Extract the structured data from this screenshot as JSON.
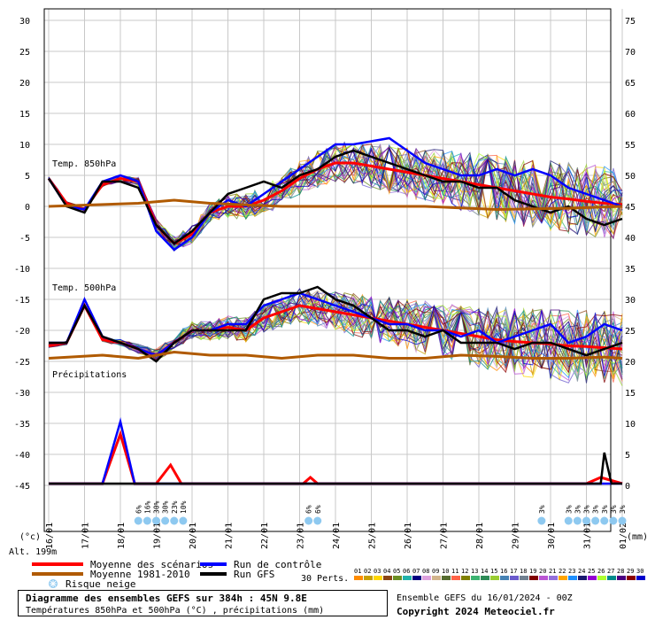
{
  "chart_data": {
    "type": "line",
    "left_axis_ticks": [
      "30",
      "25",
      "20",
      "15",
      "10",
      "5",
      "0",
      "-5",
      "-10",
      "-15",
      "-20",
      "-25",
      "-30",
      "-35",
      "-40",
      "-45"
    ],
    "right_axis_ticks": [
      "75",
      "70",
      "65",
      "60",
      "55",
      "50",
      "45",
      "40",
      "35",
      "30",
      "25",
      "20",
      "15",
      "10",
      "5",
      "0"
    ],
    "left_unit": "(°c)",
    "right_unit": "(mm)",
    "x_ticks": [
      "17/01",
      "18/01",
      "19/01",
      "20/01",
      "21/01",
      "22/01",
      "23/01",
      "24/01",
      "25/01",
      "26/01",
      "27/01",
      "28/01",
      "29/01",
      "30/01",
      "31/01",
      "01/02"
    ],
    "x_first_partial": "16/01",
    "alt_label": "Alt. 199m",
    "labels": {
      "t850": "Temp. 850hPa",
      "t500": "Temp. 500hPa",
      "precip": "Précipitations"
    },
    "snow_risk": [
      {
        "day": 2.0,
        "pct": "6%"
      },
      {
        "day": 2.25,
        "pct": "16%"
      },
      {
        "day": 2.5,
        "pct": "30%"
      },
      {
        "day": 2.75,
        "pct": "30%"
      },
      {
        "day": 3.0,
        "pct": "23%"
      },
      {
        "day": 3.25,
        "pct": "10%"
      },
      {
        "day": 6.75,
        "pct": "6%"
      },
      {
        "day": 7.0,
        "pct": "6%"
      },
      {
        "day": 13.25,
        "pct": "3%"
      },
      {
        "day": 14.0,
        "pct": "3%"
      },
      {
        "day": 14.25,
        "pct": "3%"
      },
      {
        "day": 14.5,
        "pct": "3%"
      },
      {
        "day": 14.75,
        "pct": "3%"
      },
      {
        "day": 15.0,
        "pct": "3%"
      },
      {
        "day": 15.25,
        "pct": "3%"
      },
      {
        "day": 15.5,
        "pct": "3%"
      }
    ],
    "series": [
      {
        "name": "Moyenne des scénarios",
        "color": "#ff0000",
        "t850": [
          [
            -0.5,
            4.5
          ],
          [
            0,
            0.5
          ],
          [
            0.5,
            -0.5
          ],
          [
            1,
            3.5
          ],
          [
            1.5,
            4.5
          ],
          [
            2,
            4
          ],
          [
            2.5,
            -3
          ],
          [
            3,
            -6
          ],
          [
            3.5,
            -4.5
          ],
          [
            4,
            -1
          ],
          [
            4.5,
            0
          ],
          [
            5,
            0
          ],
          [
            5.5,
            1
          ],
          [
            6,
            2.5
          ],
          [
            6.5,
            4.5
          ],
          [
            7,
            6
          ],
          [
            7.5,
            7
          ],
          [
            8,
            7
          ],
          [
            8.5,
            6.5
          ],
          [
            9,
            6
          ],
          [
            9.5,
            5.5
          ],
          [
            10,
            5
          ],
          [
            10.5,
            4.5
          ],
          [
            11,
            4
          ],
          [
            11.5,
            3.5
          ],
          [
            12,
            3
          ],
          [
            12.5,
            2.5
          ],
          [
            13,
            2
          ],
          [
            13.5,
            1.5
          ],
          [
            14,
            1.2
          ],
          [
            14.5,
            0.8
          ],
          [
            15,
            0.5
          ],
          [
            15.5,
            0.3
          ]
        ],
        "t500": [
          [
            -0.5,
            -22.5
          ],
          [
            0,
            -22
          ],
          [
            0.5,
            -16
          ],
          [
            1,
            -21.5
          ],
          [
            1.5,
            -22
          ],
          [
            2,
            -23
          ],
          [
            2.5,
            -24
          ],
          [
            3,
            -22
          ],
          [
            3.5,
            -20
          ],
          [
            4,
            -20
          ],
          [
            4.5,
            -19.5
          ],
          [
            5,
            -20
          ],
          [
            5.5,
            -18
          ],
          [
            6,
            -17
          ],
          [
            6.5,
            -16
          ],
          [
            7,
            -16.5
          ],
          [
            7.5,
            -17
          ],
          [
            8,
            -17.5
          ],
          [
            8.5,
            -18
          ],
          [
            9,
            -18.5
          ],
          [
            9.5,
            -19
          ],
          [
            10,
            -19.5
          ],
          [
            10.5,
            -20
          ],
          [
            11,
            -20.5
          ],
          [
            11.5,
            -21
          ],
          [
            12,
            -21.5
          ],
          [
            12.5,
            -21.8
          ],
          [
            13,
            -22
          ],
          [
            13.5,
            -22.2
          ],
          [
            14,
            -22.5
          ],
          [
            14.5,
            -22.6
          ],
          [
            15,
            -22.8
          ],
          [
            15.5,
            -23
          ]
        ],
        "precip": [
          [
            -0.5,
            0
          ],
          [
            1.0,
            0
          ],
          [
            1.5,
            8
          ],
          [
            1.9,
            0
          ],
          [
            2.5,
            0
          ],
          [
            2.9,
            3
          ],
          [
            3.2,
            0
          ],
          [
            6.6,
            0
          ],
          [
            6.8,
            1
          ],
          [
            7.0,
            0
          ],
          [
            14.5,
            0
          ],
          [
            14.9,
            1
          ],
          [
            15.5,
            0
          ]
        ]
      },
      {
        "name": "Run de contrôle",
        "color": "#0000ff",
        "t850": [
          [
            -0.5,
            4.5
          ],
          [
            0,
            0
          ],
          [
            0.5,
            -0.5
          ],
          [
            1,
            4
          ],
          [
            1.5,
            5
          ],
          [
            2,
            4
          ],
          [
            2.5,
            -4
          ],
          [
            3,
            -7
          ],
          [
            3.5,
            -5
          ],
          [
            4,
            -1
          ],
          [
            4.5,
            1
          ],
          [
            5,
            0
          ],
          [
            5.5,
            2
          ],
          [
            6,
            4
          ],
          [
            6.5,
            6
          ],
          [
            7,
            8
          ],
          [
            7.5,
            10
          ],
          [
            8,
            10
          ],
          [
            8.5,
            10.5
          ],
          [
            9,
            11
          ],
          [
            9.5,
            9
          ],
          [
            10,
            7
          ],
          [
            10.5,
            6
          ],
          [
            11,
            5
          ],
          [
            11.5,
            5
          ],
          [
            12,
            6
          ],
          [
            12.5,
            5
          ],
          [
            13,
            6
          ],
          [
            13.5,
            5
          ],
          [
            14,
            3
          ],
          [
            14.5,
            2
          ],
          [
            15,
            1
          ],
          [
            15.5,
            0
          ]
        ],
        "t500": [
          [
            -0.5,
            -22
          ],
          [
            0,
            -22
          ],
          [
            0.5,
            -15
          ],
          [
            1,
            -21
          ],
          [
            1.5,
            -22
          ],
          [
            2,
            -23
          ],
          [
            2.5,
            -24
          ],
          [
            3,
            -22
          ],
          [
            3.5,
            -20
          ],
          [
            4,
            -20
          ],
          [
            4.5,
            -19
          ],
          [
            5,
            -19
          ],
          [
            5.5,
            -16
          ],
          [
            6,
            -15
          ],
          [
            6.5,
            -14
          ],
          [
            7,
            -15
          ],
          [
            7.5,
            -16
          ],
          [
            8,
            -17
          ],
          [
            8.5,
            -18
          ],
          [
            9,
            -19
          ],
          [
            9.5,
            -19
          ],
          [
            10,
            -20
          ],
          [
            10.5,
            -20
          ],
          [
            11,
            -21
          ],
          [
            11.5,
            -20
          ],
          [
            12,
            -22
          ],
          [
            12.5,
            -21
          ],
          [
            13,
            -20
          ],
          [
            13.5,
            -19
          ],
          [
            14,
            -22
          ],
          [
            14.5,
            -21
          ],
          [
            15,
            -19
          ],
          [
            15.5,
            -20
          ]
        ],
        "precip": [
          [
            -0.5,
            0
          ],
          [
            1.0,
            0
          ],
          [
            1.5,
            10
          ],
          [
            1.9,
            0
          ],
          [
            15.5,
            0
          ]
        ]
      },
      {
        "name": "Run GFS",
        "color": "#000000",
        "t850": [
          [
            -0.5,
            4.5
          ],
          [
            0,
            0
          ],
          [
            0.5,
            -1
          ],
          [
            1,
            4
          ],
          [
            1.5,
            4
          ],
          [
            2,
            3
          ],
          [
            2.5,
            -3
          ],
          [
            3,
            -6
          ],
          [
            3.5,
            -4
          ],
          [
            4,
            -1
          ],
          [
            4.5,
            2
          ],
          [
            5,
            3
          ],
          [
            5.5,
            4
          ],
          [
            6,
            3
          ],
          [
            6.5,
            5
          ],
          [
            7,
            6
          ],
          [
            7.5,
            8
          ],
          [
            8,
            9
          ],
          [
            8.5,
            8
          ],
          [
            9,
            7
          ],
          [
            9.5,
            6
          ],
          [
            10,
            5
          ],
          [
            10.5,
            4
          ],
          [
            11,
            4
          ],
          [
            11.5,
            3
          ],
          [
            12,
            3
          ],
          [
            12.5,
            1
          ],
          [
            13,
            0
          ],
          [
            13.5,
            -1
          ],
          [
            14,
            0
          ],
          [
            14.5,
            -2
          ],
          [
            15,
            -3
          ],
          [
            15.5,
            -2
          ]
        ],
        "t500": [
          [
            -0.5,
            -22
          ],
          [
            0,
            -22
          ],
          [
            0.5,
            -16
          ],
          [
            1,
            -21
          ],
          [
            1.5,
            -22
          ],
          [
            2,
            -23
          ],
          [
            2.5,
            -25
          ],
          [
            3,
            -22
          ],
          [
            3.5,
            -20
          ],
          [
            4,
            -20
          ],
          [
            4.5,
            -20
          ],
          [
            5,
            -20
          ],
          [
            5.5,
            -15
          ],
          [
            6,
            -14
          ],
          [
            6.5,
            -14
          ],
          [
            7,
            -13
          ],
          [
            7.5,
            -15
          ],
          [
            8,
            -16
          ],
          [
            8.5,
            -18
          ],
          [
            9,
            -20
          ],
          [
            9.5,
            -20
          ],
          [
            10,
            -21
          ],
          [
            10.5,
            -20
          ],
          [
            11,
            -22
          ],
          [
            11.5,
            -22
          ],
          [
            12,
            -22
          ],
          [
            12.5,
            -23
          ],
          [
            13,
            -22
          ],
          [
            13.5,
            -22
          ],
          [
            14,
            -23
          ],
          [
            14.5,
            -24
          ],
          [
            15,
            -23
          ],
          [
            15.5,
            -22
          ]
        ],
        "precip": [
          [
            -0.5,
            0
          ],
          [
            14.9,
            0
          ],
          [
            15.0,
            5
          ],
          [
            15.2,
            0
          ],
          [
            15.5,
            0
          ]
        ]
      },
      {
        "name": "Moyenne 1981-2010",
        "color": "#b05a00",
        "t850": [
          [
            -0.5,
            0
          ],
          [
            2,
            0.5
          ],
          [
            3,
            1
          ],
          [
            4,
            0.5
          ],
          [
            6,
            0
          ],
          [
            8,
            0
          ],
          [
            10,
            0
          ],
          [
            12,
            -0.5
          ],
          [
            14,
            -0.3
          ],
          [
            15.5,
            0
          ]
        ],
        "t500": [
          [
            -0.5,
            -24.5
          ],
          [
            1,
            -24
          ],
          [
            2,
            -24.5
          ],
          [
            3,
            -23.5
          ],
          [
            4,
            -24
          ],
          [
            5,
            -24
          ],
          [
            6,
            -24.5
          ],
          [
            7,
            -24
          ],
          [
            8,
            -24
          ],
          [
            9,
            -24.5
          ],
          [
            10,
            -24.5
          ],
          [
            11,
            -24
          ],
          [
            12,
            -24.2
          ],
          [
            13,
            -24.5
          ],
          [
            14,
            -24.5
          ],
          [
            15,
            -24.3
          ],
          [
            15.5,
            -24.5
          ]
        ]
      }
    ],
    "perturbations_label": "30 Perts.",
    "perturbations": [
      {
        "n": "01",
        "c": "#ff8c00"
      },
      {
        "n": "02",
        "c": "#c8a000"
      },
      {
        "n": "03",
        "c": "#ffd700"
      },
      {
        "n": "04",
        "c": "#8b4513"
      },
      {
        "n": "05",
        "c": "#6b8e23"
      },
      {
        "n": "06",
        "c": "#20b2aa"
      },
      {
        "n": "07",
        "c": "#000080"
      },
      {
        "n": "08",
        "c": "#dda0dd"
      },
      {
        "n": "09",
        "c": "#d2b48c"
      },
      {
        "n": "10",
        "c": "#556b2f"
      },
      {
        "n": "11",
        "c": "#ff6347"
      },
      {
        "n": "12",
        "c": "#808000"
      },
      {
        "n": "13",
        "c": "#3cb371"
      },
      {
        "n": "14",
        "c": "#2e8b57"
      },
      {
        "n": "15",
        "c": "#9acd32"
      },
      {
        "n": "16",
        "c": "#4682b4"
      },
      {
        "n": "17",
        "c": "#6a5acd"
      },
      {
        "n": "18",
        "c": "#708090"
      },
      {
        "n": "19",
        "c": "#800000"
      },
      {
        "n": "20",
        "c": "#ba55d3"
      },
      {
        "n": "21",
        "c": "#9370db"
      },
      {
        "n": "22",
        "c": "#ffa500"
      },
      {
        "n": "23",
        "c": "#1e90ff"
      },
      {
        "n": "24",
        "c": "#191970"
      },
      {
        "n": "25",
        "c": "#9400d3"
      },
      {
        "n": "26",
        "c": "#adff2f"
      },
      {
        "n": "27",
        "c": "#008b8b"
      },
      {
        "n": "28",
        "c": "#4b0082"
      },
      {
        "n": "29",
        "c": "#8b0000"
      },
      {
        "n": "30",
        "c": "#0000cd"
      }
    ]
  },
  "legend": {
    "mean": "Moyenne des scénarios",
    "clim": "Moyenne 1981-2010",
    "snow": "Risque neige",
    "control": "Run de contrôle",
    "gfs": "Run GFS"
  },
  "info": {
    "title": "Diagramme des ensembles GEFS sur 384h : 45N 9.8E",
    "subtitle": "Températures 850hPa et 500hPa (°C) , précipitations (mm)",
    "ensemble": "Ensemble GEFS du 16/01/2024 - 00Z",
    "copyright": "Copyright 2024 Meteociel.fr"
  }
}
